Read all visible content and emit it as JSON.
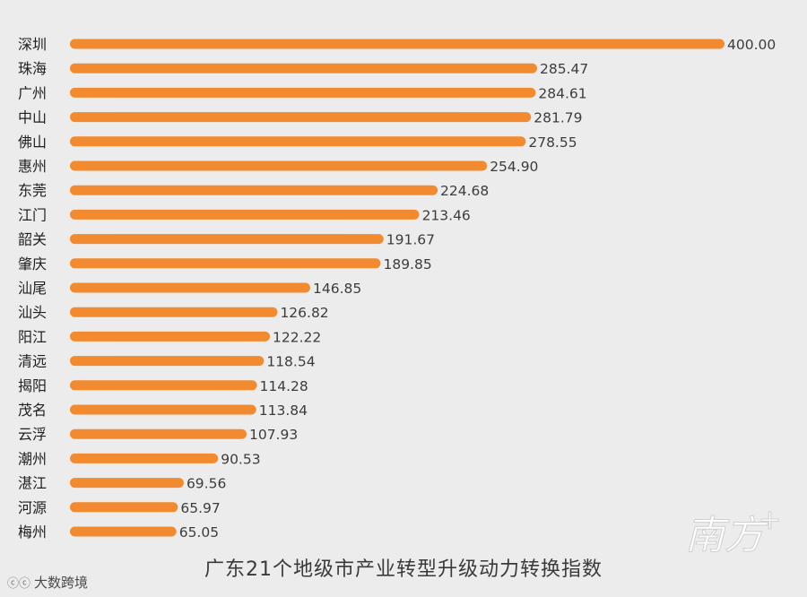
{
  "chart_data": {
    "type": "bar",
    "orientation": "horizontal",
    "title": "广东21个地级市产业转型升级动力转换指数",
    "categories": [
      "深圳",
      "珠海",
      "广州",
      "中山",
      "佛山",
      "惠州",
      "东莞",
      "江门",
      "韶关",
      "肇庆",
      "汕尾",
      "汕头",
      "阳江",
      "清远",
      "揭阳",
      "茂名",
      "云浮",
      "潮州",
      "湛江",
      "河源",
      "梅州"
    ],
    "values": [
      400.0,
      285.47,
      284.61,
      281.79,
      278.55,
      254.9,
      224.68,
      213.46,
      191.67,
      189.85,
      146.85,
      126.82,
      122.22,
      118.54,
      114.28,
      113.84,
      107.93,
      90.53,
      69.56,
      65.97,
      65.05
    ],
    "value_labels": [
      "400.00",
      "285.47",
      "284.61",
      "281.79",
      "278.55",
      "254.90",
      "224.68",
      "213.46",
      "191.67",
      "189.85",
      "146.85",
      "126.82",
      "122.22",
      "118.54",
      "114.28",
      "113.84",
      "107.93",
      "90.53",
      "69.56",
      "65.97",
      "65.05"
    ],
    "xlim": [
      0,
      400
    ],
    "grid": false,
    "legend": "none",
    "bar_color": "#f28a30"
  },
  "watermark": {
    "icon": "cc-icon",
    "text": "大数跨境"
  },
  "brand": {
    "text": "南方+"
  }
}
